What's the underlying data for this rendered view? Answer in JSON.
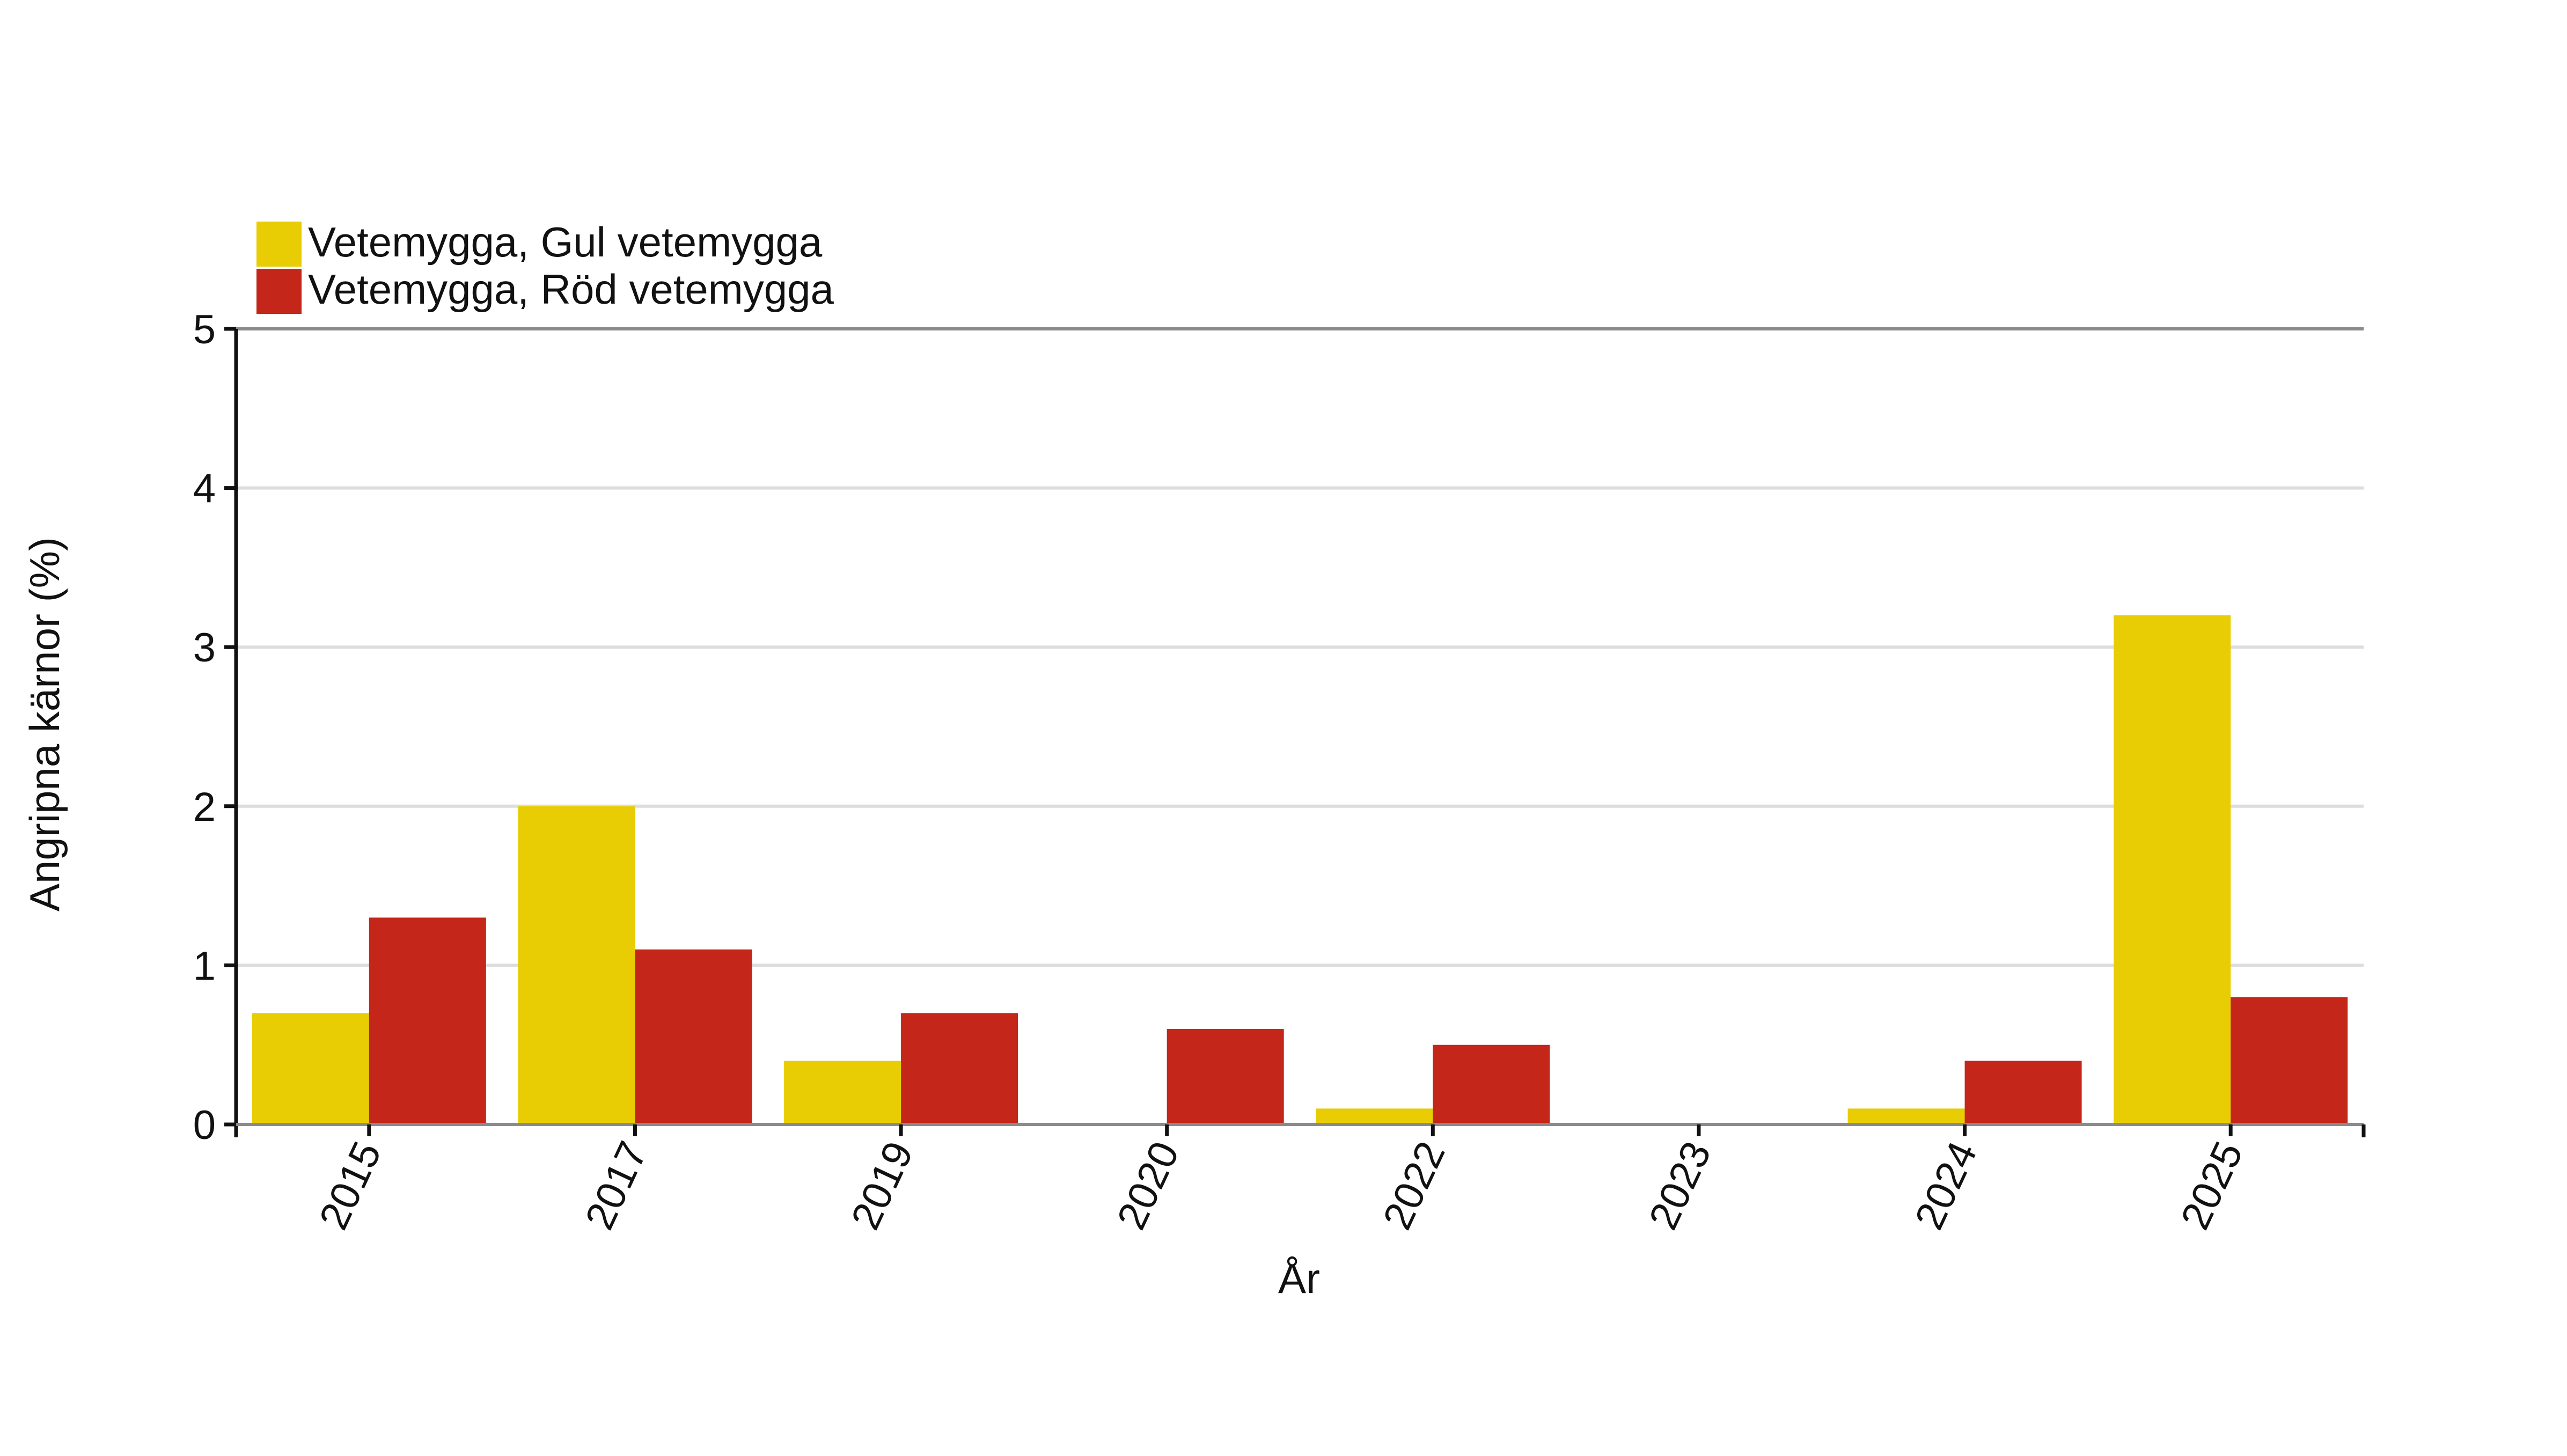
{
  "chart_data": {
    "type": "bar",
    "title": "",
    "xlabel": "År",
    "ylabel": "Angripna kärnor (%)",
    "categories": [
      "2015",
      "2017",
      "2019",
      "2020",
      "2022",
      "2023",
      "2024",
      "2025"
    ],
    "series": [
      {
        "name": "Vetemygga, Gul vetemygga",
        "color": "#e8cd04",
        "values": [
          0.7,
          2.0,
          0.4,
          0.0,
          0.1,
          0.0,
          0.1,
          3.2
        ]
      },
      {
        "name": "Vetemygga, Röd vetemygga",
        "color": "#c4261a",
        "values": [
          1.3,
          1.1,
          0.7,
          0.6,
          0.5,
          0.0,
          0.4,
          0.8
        ]
      }
    ],
    "ylim": [
      0,
      5
    ],
    "yticks": [
      "0",
      "1",
      "2",
      "3",
      "4",
      "5"
    ],
    "grid": true,
    "legend_position": "top-left",
    "x_tick_rotation": "-65deg"
  }
}
